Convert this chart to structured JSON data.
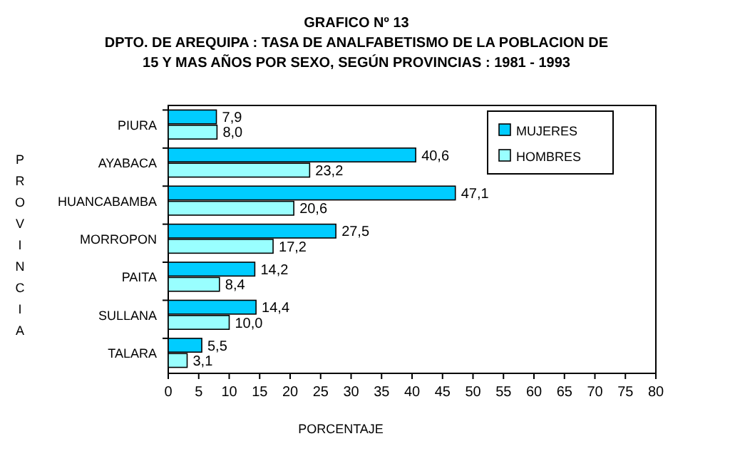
{
  "chart_data": {
    "type": "bar",
    "orientation": "horizontal",
    "title": "GRAFICO Nº 13",
    "subtitle": "DPTO. DE AREQUIPA : TASA DE ANALFABETISMO DE LA POBLACION DE\n15 Y MAS AÑOS POR SEXO, SEGÚN PROVINCIAS : 1981 - 1993",
    "xlabel": "PORCENTAJE",
    "ylabel": "PROVINCIA",
    "categories": [
      "PIURA",
      "AYABACA",
      "HUANCABAMBA",
      "MORROPON",
      "PAITA",
      "SULLANA",
      "TALARA"
    ],
    "series": [
      {
        "name": "MUJERES",
        "color": "#00ccff",
        "values": [
          7.9,
          40.6,
          47.1,
          27.5,
          14.2,
          14.4,
          5.5
        ],
        "value_labels": [
          "7,9",
          "40,6",
          "47,1",
          "27,5",
          "14,2",
          "14,4",
          "5,5"
        ]
      },
      {
        "name": "HOMBRES",
        "color": "#99ffff",
        "values": [
          8.0,
          23.2,
          20.6,
          17.2,
          8.4,
          10.0,
          3.1
        ],
        "value_labels": [
          "8,0",
          "23,2",
          "20,6",
          "17,2",
          "8,4",
          "10,0",
          "3,1"
        ]
      }
    ],
    "xlim": [
      0,
      80
    ],
    "xticks": [
      0,
      5,
      10,
      15,
      20,
      25,
      30,
      35,
      40,
      45,
      50,
      55,
      60,
      65,
      70,
      75,
      80
    ],
    "grid": false,
    "legend": "top right"
  }
}
